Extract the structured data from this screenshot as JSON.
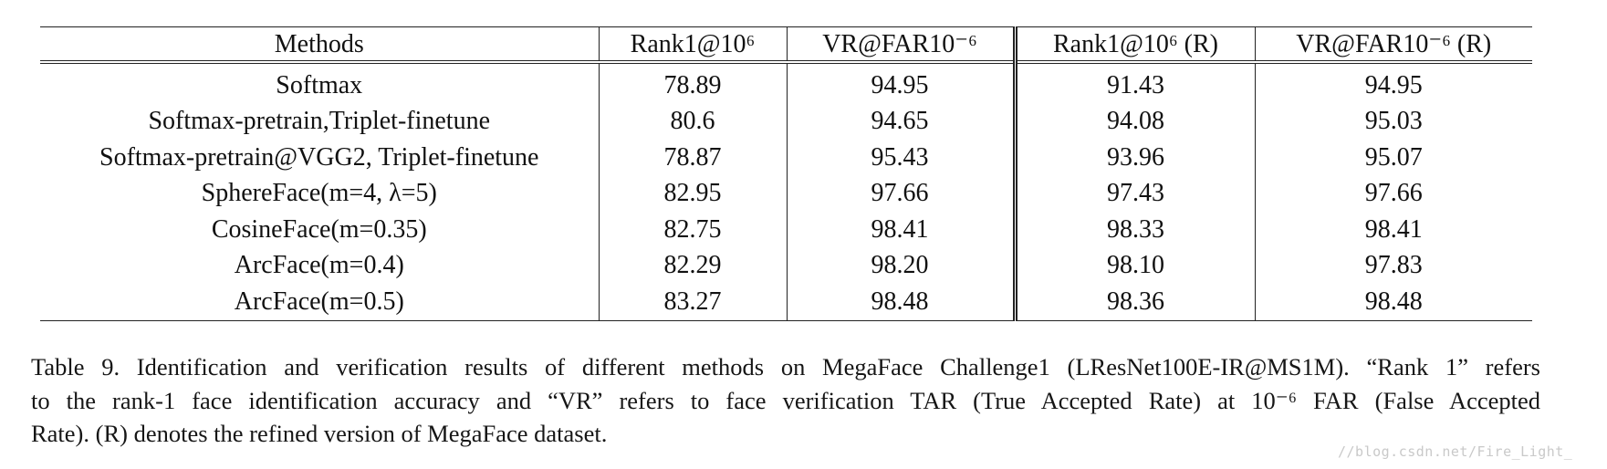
{
  "table": {
    "headers": [
      "Methods",
      "Rank1@10⁶",
      "VR@FAR10⁻⁶",
      "Rank1@10⁶ (R)",
      "VR@FAR10⁻⁶ (R)"
    ],
    "rows": [
      {
        "method": "Softmax",
        "rank1": "78.89",
        "vr": "94.95",
        "rank1_r": "91.43",
        "vr_r": "94.95"
      },
      {
        "method": "Softmax-pretrain,Triplet-finetune",
        "rank1": "80.6",
        "vr": "94.65",
        "rank1_r": "94.08",
        "vr_r": "95.03"
      },
      {
        "method": "Softmax-pretrain@VGG2, Triplet-finetune",
        "rank1": "78.87",
        "vr": "95.43",
        "rank1_r": "93.96",
        "vr_r": "95.07"
      },
      {
        "method": "SphereFace(m=4, λ=5)",
        "rank1": "82.95",
        "vr": "97.66",
        "rank1_r": "97.43",
        "vr_r": "97.66"
      },
      {
        "method": "CosineFace(m=0.35)",
        "rank1": "82.75",
        "vr": "98.41",
        "rank1_r": "98.33",
        "vr_r": "98.41"
      },
      {
        "method": "ArcFace(m=0.4)",
        "rank1": "82.29",
        "vr": "98.20",
        "rank1_r": "98.10",
        "vr_r": "97.83"
      },
      {
        "method": "ArcFace(m=0.5)",
        "rank1": "83.27",
        "vr": "98.48",
        "rank1_r": "98.36",
        "vr_r": "98.48"
      }
    ]
  },
  "caption": {
    "line1": "Table 9. Identification and verification results of different methods on MegaFace Challenge1 (LResNet100E-IR@MS1M). “Rank 1” refers",
    "line2": "to the rank-1 face identification accuracy and “VR” refers to face verification TAR (True Accepted Rate) at 10⁻⁶ FAR (False Accepted",
    "line3": "Rate). (R) denotes the refined version of MegaFace dataset."
  },
  "watermark": "//blog.csdn.net/Fire_Light_"
}
